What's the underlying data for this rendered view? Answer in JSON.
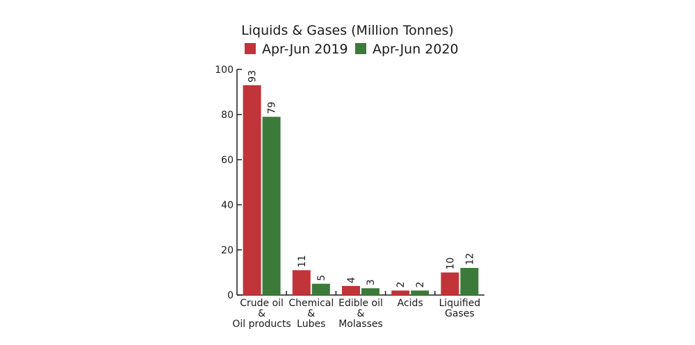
{
  "chart_data": {
    "type": "bar",
    "title": "Liquids & Gases (Million Tonnes)",
    "categories": [
      [
        "Crude oil",
        "&",
        "Oil products"
      ],
      [
        "Chemical",
        "&",
        "Lubes"
      ],
      [
        "Edible oil",
        "&",
        "Molasses"
      ],
      [
        "Acids"
      ],
      [
        "Liquified",
        "Gases"
      ]
    ],
    "series": [
      {
        "name": "Apr-Jun 2019",
        "values": [
          93,
          11,
          4,
          2,
          10
        ],
        "color": "#c0343a"
      },
      {
        "name": "Apr-Jun 2020",
        "values": [
          79,
          5,
          3,
          2,
          12
        ],
        "color": "#3c7a3a"
      }
    ],
    "ylim": [
      0,
      100
    ],
    "yticks": [
      0,
      20,
      40,
      60,
      80,
      100
    ],
    "legend": "top",
    "grid": false,
    "data_labels": "rotated"
  }
}
